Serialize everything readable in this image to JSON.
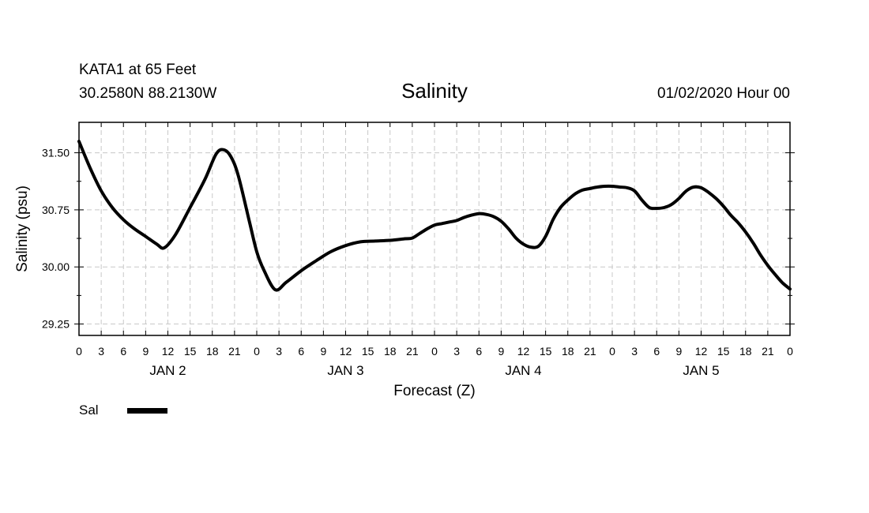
{
  "chart_data": {
    "type": "line",
    "station": "KATA1 at 65 Feet",
    "location": "30.2580N 88.2130W",
    "title": "Salinity",
    "issued": "01/02/2020 Hour 00",
    "xlabel": "Forecast (Z)",
    "ylabel": "Salinity (psu)",
    "x_unit": "hours",
    "xlim": [
      0,
      96
    ],
    "ylim": [
      29.1,
      31.9
    ],
    "y_ticks": [
      29.25,
      30.0,
      30.75,
      31.5
    ],
    "y_tick_labels": [
      "29.25",
      "30.00",
      "30.75",
      "31.50"
    ],
    "x_tick_labels": [
      "0",
      "3",
      "6",
      "9",
      "12",
      "15",
      "18",
      "21",
      "0",
      "3",
      "6",
      "9",
      "12",
      "15",
      "18",
      "21",
      "0",
      "3",
      "6",
      "9",
      "12",
      "15",
      "18",
      "21",
      "0",
      "3",
      "6",
      "9",
      "12",
      "15",
      "18",
      "21",
      "0"
    ],
    "day_labels": [
      {
        "label": "JAN 2",
        "hour": 12
      },
      {
        "label": "JAN 3",
        "hour": 36
      },
      {
        "label": "JAN 4",
        "hour": 60
      },
      {
        "label": "JAN 5",
        "hour": 84
      }
    ],
    "grid": true,
    "series": [
      {
        "name": "Sal",
        "x": [
          0,
          1.5,
          3,
          4.5,
          6,
          7.5,
          9,
          10.5,
          11.5,
          13,
          15,
          17,
          18.5,
          19.5,
          20.5,
          21.5,
          23,
          24,
          25,
          26.5,
          28,
          30,
          32,
          34,
          36,
          38,
          40,
          42,
          44,
          45,
          46,
          47,
          48,
          49,
          50,
          51,
          52,
          53,
          54,
          55,
          56,
          57,
          58,
          59,
          60,
          61,
          62,
          63,
          64,
          65,
          66,
          67,
          68,
          69,
          70,
          71,
          72,
          73,
          74,
          75,
          76,
          77,
          78,
          79,
          80,
          81,
          82,
          83,
          84,
          85,
          86,
          87,
          88,
          89,
          90,
          91,
          92,
          93,
          94,
          95,
          96
        ],
        "y": [
          31.65,
          31.3,
          31.0,
          30.78,
          30.62,
          30.5,
          30.4,
          30.3,
          30.25,
          30.42,
          30.78,
          31.15,
          31.48,
          31.54,
          31.45,
          31.2,
          30.6,
          30.2,
          29.95,
          29.7,
          29.8,
          29.95,
          30.08,
          30.2,
          30.28,
          30.33,
          30.34,
          30.35,
          30.37,
          30.38,
          30.44,
          30.5,
          30.55,
          30.57,
          30.59,
          30.61,
          30.65,
          30.68,
          30.7,
          30.69,
          30.66,
          30.6,
          30.5,
          30.38,
          30.3,
          30.26,
          30.27,
          30.4,
          30.62,
          30.78,
          30.88,
          30.96,
          31.01,
          31.03,
          31.05,
          31.06,
          31.06,
          31.05,
          31.04,
          31.0,
          30.88,
          30.78,
          30.77,
          30.78,
          30.82,
          30.9,
          31.0,
          31.05,
          31.04,
          30.98,
          30.9,
          30.8,
          30.68,
          30.58,
          30.46,
          30.32,
          30.16,
          30.02,
          29.9,
          29.79,
          29.71
        ]
      }
    ],
    "legend": {
      "label": "Sal",
      "placement": "bottom-left"
    }
  }
}
